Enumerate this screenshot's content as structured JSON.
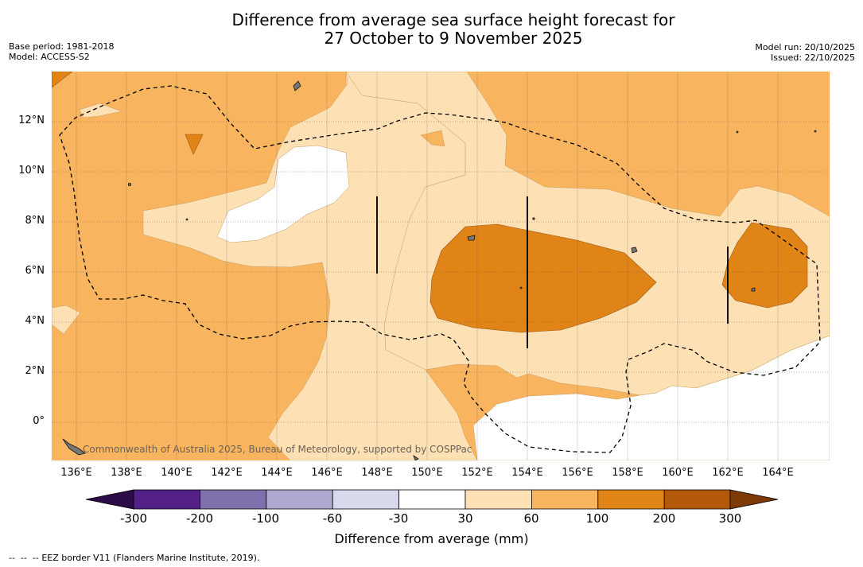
{
  "title": {
    "line1": "Difference from average sea surface height forecast for",
    "line2": "27 October to 9 November 2025"
  },
  "meta": {
    "base_period": "Base period: 1981-2018",
    "model": "Model: ACCESS-S2",
    "model_run": "Model run: 20/10/2025",
    "issued": "Issued: 22/10/2025"
  },
  "map": {
    "lat_labels": [
      "12°N",
      "10°N",
      "8°N",
      "6°N",
      "4°N",
      "2°N",
      "0°"
    ],
    "lon_labels": [
      "136°E",
      "138°E",
      "140°E",
      "142°E",
      "144°E",
      "146°E",
      "148°E",
      "150°E",
      "152°E",
      "154°E",
      "156°E",
      "158°E",
      "160°E",
      "162°E",
      "164°E"
    ],
    "credit": "Commonwealth of Australia 2025, Bureau of Meteorology, supported by COSPPac"
  },
  "colorbar": {
    "ticks": [
      "-300",
      "-200",
      "-100",
      "-60",
      "-30",
      "30",
      "60",
      "100",
      "200",
      "300"
    ],
    "colors": {
      "below_min": "#2d0a48",
      "c1": "#532185",
      "c2": "#7e70ab",
      "c3": "#afa9d1",
      "c4": "#d8d9ec",
      "c5": "#ffffff",
      "c6": "#fde0b4",
      "c7": "#f8b45f",
      "c8": "#e08418",
      "c9": "#b35a0a",
      "above_max": "#7d3a04"
    },
    "label": "Difference from average (mm)"
  },
  "legend": {
    "eez_note": "EEZ border V11 (Flanders Marine Institute, 2019)."
  }
}
